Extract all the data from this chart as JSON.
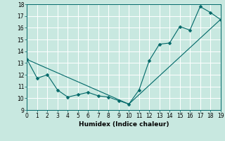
{
  "xlabel": "Humidex (Indice chaleur)",
  "line1_x": [
    0,
    1,
    2,
    3,
    4,
    5,
    6,
    7,
    8,
    9,
    10,
    11,
    12,
    13,
    14,
    15,
    16,
    17,
    18,
    19
  ],
  "line1_y": [
    13.3,
    11.7,
    12.0,
    10.7,
    10.1,
    10.3,
    10.5,
    10.2,
    10.1,
    9.8,
    9.5,
    10.7,
    13.2,
    14.6,
    14.7,
    16.1,
    15.8,
    17.8,
    17.3,
    16.7
  ],
  "line2_x": [
    0,
    10,
    19
  ],
  "line2_y": [
    13.3,
    9.5,
    16.7
  ],
  "line_color": "#006868",
  "marker": "D",
  "marker_size": 2.5,
  "xlim": [
    0,
    19
  ],
  "ylim": [
    9,
    18
  ],
  "yticks": [
    9,
    10,
    11,
    12,
    13,
    14,
    15,
    16,
    17,
    18
  ],
  "xticks": [
    0,
    1,
    2,
    3,
    4,
    5,
    6,
    7,
    8,
    9,
    10,
    11,
    12,
    13,
    14,
    15,
    16,
    17,
    18,
    19
  ],
  "bg_color": "#c8e8e0",
  "grid_color": "#ffffff",
  "tick_fontsize": 5.5,
  "xlabel_fontsize": 6.5
}
